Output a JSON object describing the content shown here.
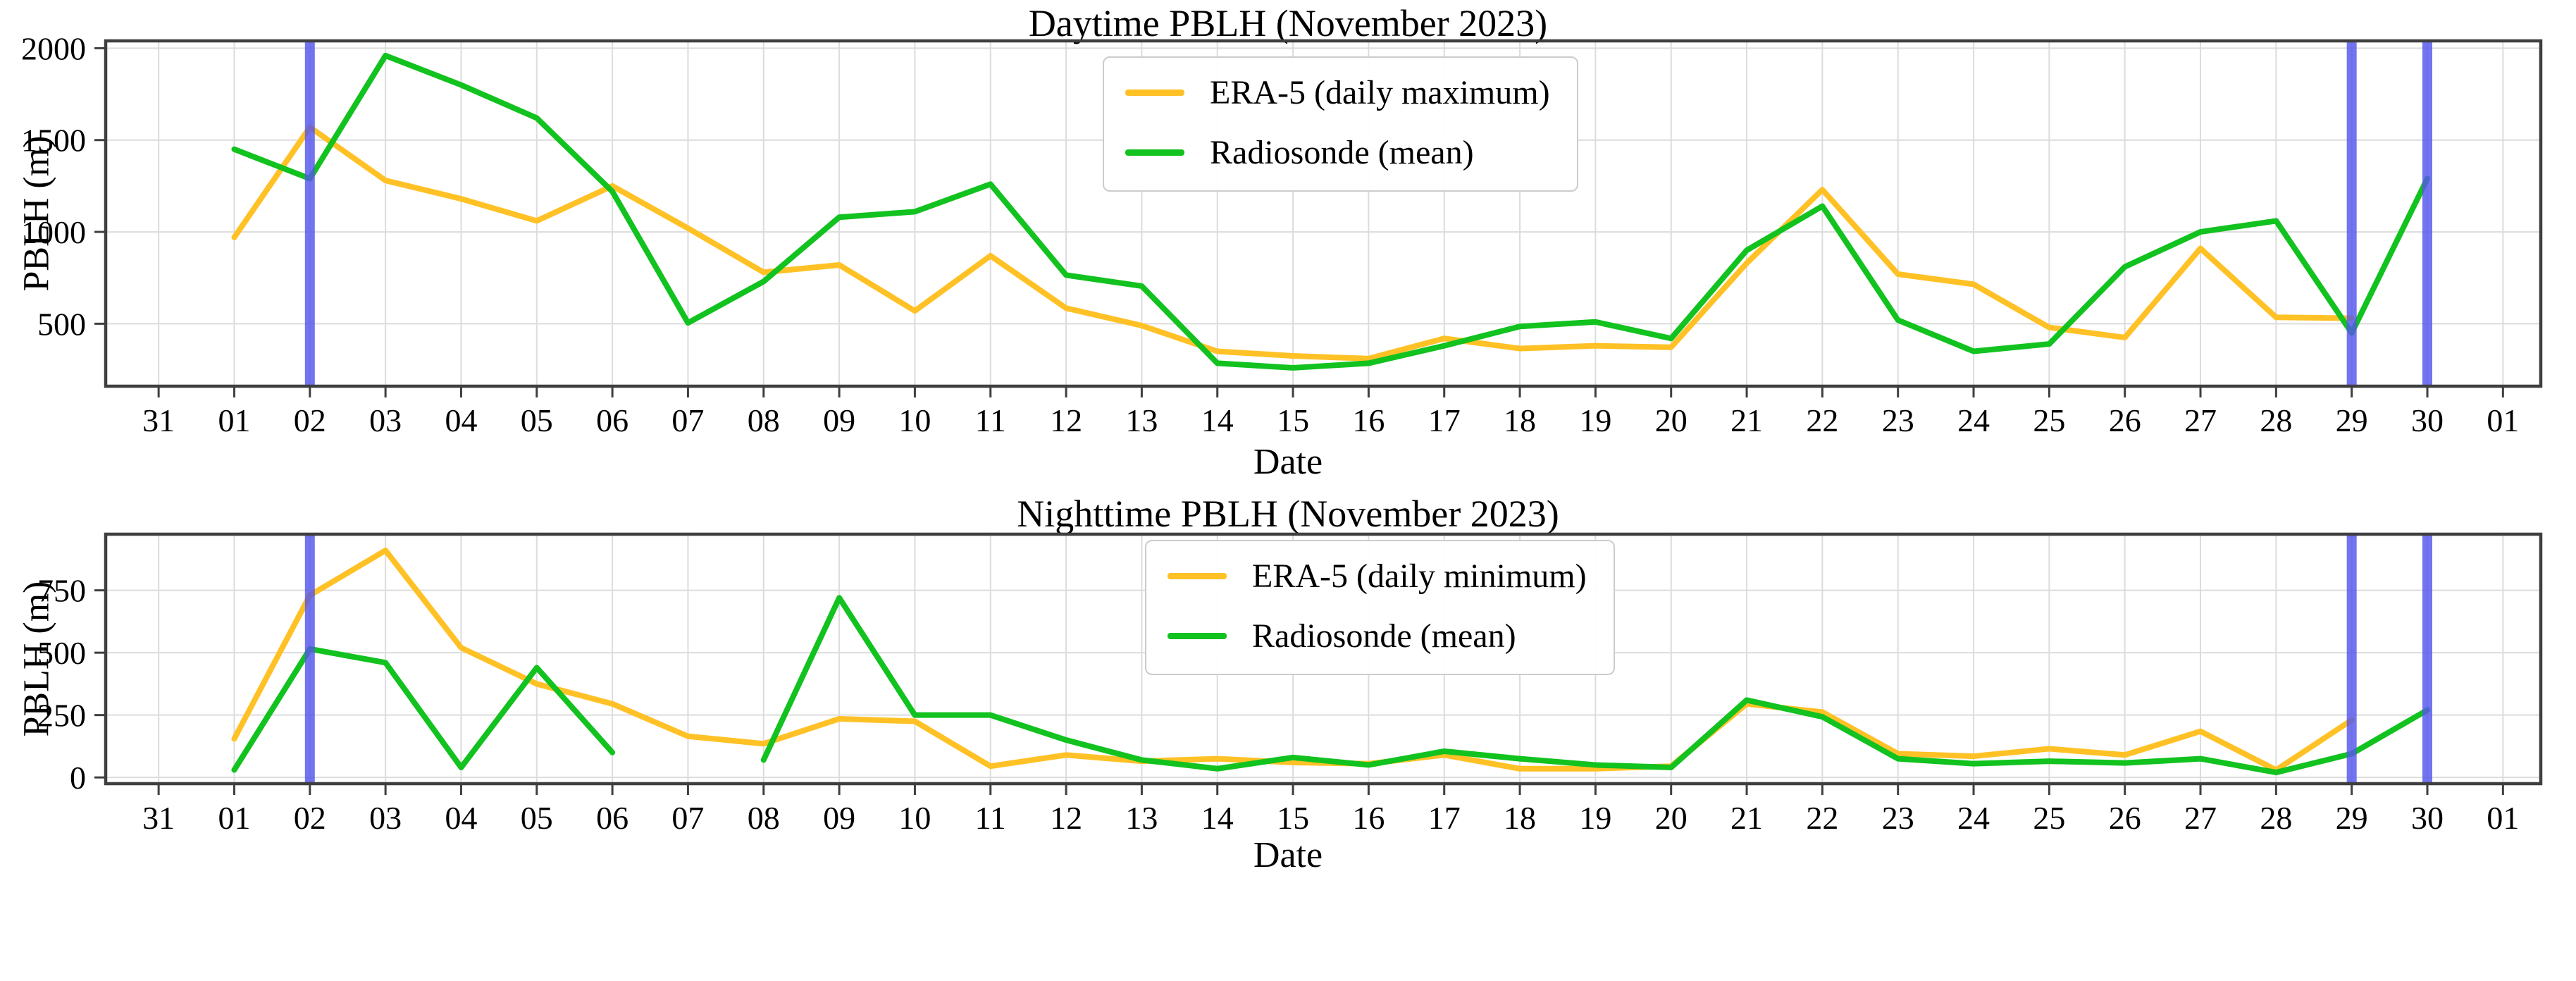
{
  "palette": {
    "era5_orange": "#FFC125",
    "radiosonde_green": "#12C21F",
    "highlight_blue": "#5456EC",
    "grid_gray": "#DCDCDC",
    "spine_gray": "#3F3F3F",
    "text_black": "#000000",
    "legend_border": "#CCCCCC"
  },
  "chart_data": [
    {
      "type": "line",
      "title": "Daytime PBLH (November 2023)",
      "xlabel": "Date",
      "ylabel": "PBLH (m)",
      "categories": [
        "31",
        "01",
        "02",
        "03",
        "04",
        "05",
        "06",
        "07",
        "08",
        "09",
        "10",
        "11",
        "12",
        "13",
        "14",
        "15",
        "16",
        "17",
        "18",
        "19",
        "20",
        "21",
        "22",
        "23",
        "24",
        "25",
        "26",
        "27",
        "28",
        "29",
        "30",
        "01"
      ],
      "ylim": [
        160,
        2040
      ],
      "yticks": [
        500,
        1000,
        1500,
        2000
      ],
      "grid": true,
      "legend_position": "upper center",
      "highlight_days": [
        2,
        29,
        30
      ],
      "series": [
        {
          "name": "ERA-5 (daily maximum)",
          "color": "#FFC125",
          "segments": [
            [
              [
                1,
                970
              ],
              [
                2,
                1570
              ],
              [
                3,
                1280
              ],
              [
                4,
                1180
              ],
              [
                5,
                1060
              ],
              [
                6,
                1250
              ],
              [
                7,
                1020
              ],
              [
                8,
                780
              ],
              [
                9,
                820
              ],
              [
                10,
                570
              ],
              [
                11,
                870
              ],
              [
                12,
                585
              ],
              [
                13,
                490
              ],
              [
                14,
                350
              ],
              [
                15,
                325
              ],
              [
                16,
                310
              ],
              [
                17,
                420
              ],
              [
                18,
                365
              ],
              [
                19,
                380
              ],
              [
                20,
                372
              ],
              [
                21,
                830
              ],
              [
                22,
                1230
              ],
              [
                23,
                770
              ],
              [
                24,
                715
              ],
              [
                25,
                480
              ],
              [
                26,
                425
              ],
              [
                27,
                910
              ],
              [
                28,
                535
              ],
              [
                29,
                530
              ]
            ]
          ]
        },
        {
          "name": "Radiosonde (mean)",
          "color": "#12C21F",
          "segments": [
            [
              [
                1,
                1450
              ],
              [
                2,
                1290
              ],
              [
                3,
                1960
              ],
              [
                4,
                1800
              ],
              [
                5,
                1620
              ],
              [
                6,
                1220
              ],
              [
                7,
                505
              ],
              [
                8,
                730
              ],
              [
                9,
                1080
              ],
              [
                10,
                1110
              ],
              [
                11,
                1260
              ],
              [
                12,
                765
              ],
              [
                13,
                705
              ],
              [
                14,
                285
              ],
              [
                15,
                260
              ],
              [
                16,
                285
              ],
              [
                17,
                380
              ],
              [
                18,
                485
              ],
              [
                19,
                510
              ],
              [
                20,
                420
              ],
              [
                21,
                900
              ],
              [
                22,
                1140
              ],
              [
                23,
                520
              ],
              [
                24,
                350
              ],
              [
                25,
                390
              ],
              [
                26,
                810
              ],
              [
                27,
                1000
              ],
              [
                28,
                1060
              ],
              [
                29,
                450
              ],
              [
                30,
                1290
              ]
            ]
          ]
        }
      ]
    },
    {
      "type": "line",
      "title": "Nighttime PBLH (November 2023)",
      "xlabel": "Date",
      "ylabel": "PBLH (m)",
      "categories": [
        "31",
        "01",
        "02",
        "03",
        "04",
        "05",
        "06",
        "07",
        "08",
        "09",
        "10",
        "11",
        "12",
        "13",
        "14",
        "15",
        "16",
        "17",
        "18",
        "19",
        "20",
        "21",
        "22",
        "23",
        "24",
        "25",
        "26",
        "27",
        "28",
        "29",
        "30",
        "01"
      ],
      "ylim": [
        -25,
        975
      ],
      "yticks": [
        0,
        250,
        500,
        750
      ],
      "grid": true,
      "legend_position": "upper center",
      "highlight_days": [
        2,
        29,
        30
      ],
      "series": [
        {
          "name": "ERA-5 (daily minimum)",
          "color": "#FFC125",
          "segments": [
            [
              [
                1,
                155
              ],
              [
                2,
                730
              ],
              [
                3,
                910
              ],
              [
                4,
                520
              ],
              [
                5,
                375
              ],
              [
                6,
                295
              ],
              [
                7,
                165
              ],
              [
                8,
                135
              ],
              [
                9,
                235
              ],
              [
                10,
                225
              ],
              [
                11,
                45
              ],
              [
                12,
                90
              ],
              [
                13,
                65
              ],
              [
                14,
                75
              ],
              [
                15,
                60
              ],
              [
                16,
                55
              ],
              [
                17,
                90
              ],
              [
                18,
                35
              ],
              [
                19,
                35
              ],
              [
                20,
                45
              ],
              [
                21,
                295
              ],
              [
                22,
                262
              ],
              [
                23,
                95
              ],
              [
                24,
                85
              ],
              [
                25,
                115
              ],
              [
                26,
                90
              ],
              [
                27,
                185
              ],
              [
                28,
                30
              ],
              [
                29,
                230
              ]
            ]
          ]
        },
        {
          "name": "Radiosonde (mean)",
          "color": "#12C21F",
          "segments": [
            [
              [
                1,
                30
              ],
              [
                2,
                515
              ],
              [
                3,
                460
              ],
              [
                4,
                40
              ],
              [
                5,
                440
              ],
              [
                6,
                100
              ]
            ],
            [
              [
                8,
                70
              ],
              [
                9,
                720
              ],
              [
                10,
                250
              ],
              [
                11,
                250
              ],
              [
                12,
                150
              ],
              [
                13,
                70
              ],
              [
                14,
                35
              ],
              [
                15,
                80
              ],
              [
                16,
                50
              ],
              [
                17,
                105
              ],
              [
                18,
                75
              ],
              [
                19,
                50
              ],
              [
                20,
                40
              ],
              [
                21,
                310
              ],
              [
                22,
                243
              ],
              [
                23,
                75
              ],
              [
                24,
                55
              ],
              [
                25,
                65
              ],
              [
                26,
                58
              ],
              [
                27,
                75
              ],
              [
                28,
                20
              ],
              [
                29,
                95
              ],
              [
                30,
                270
              ]
            ]
          ]
        }
      ]
    }
  ]
}
